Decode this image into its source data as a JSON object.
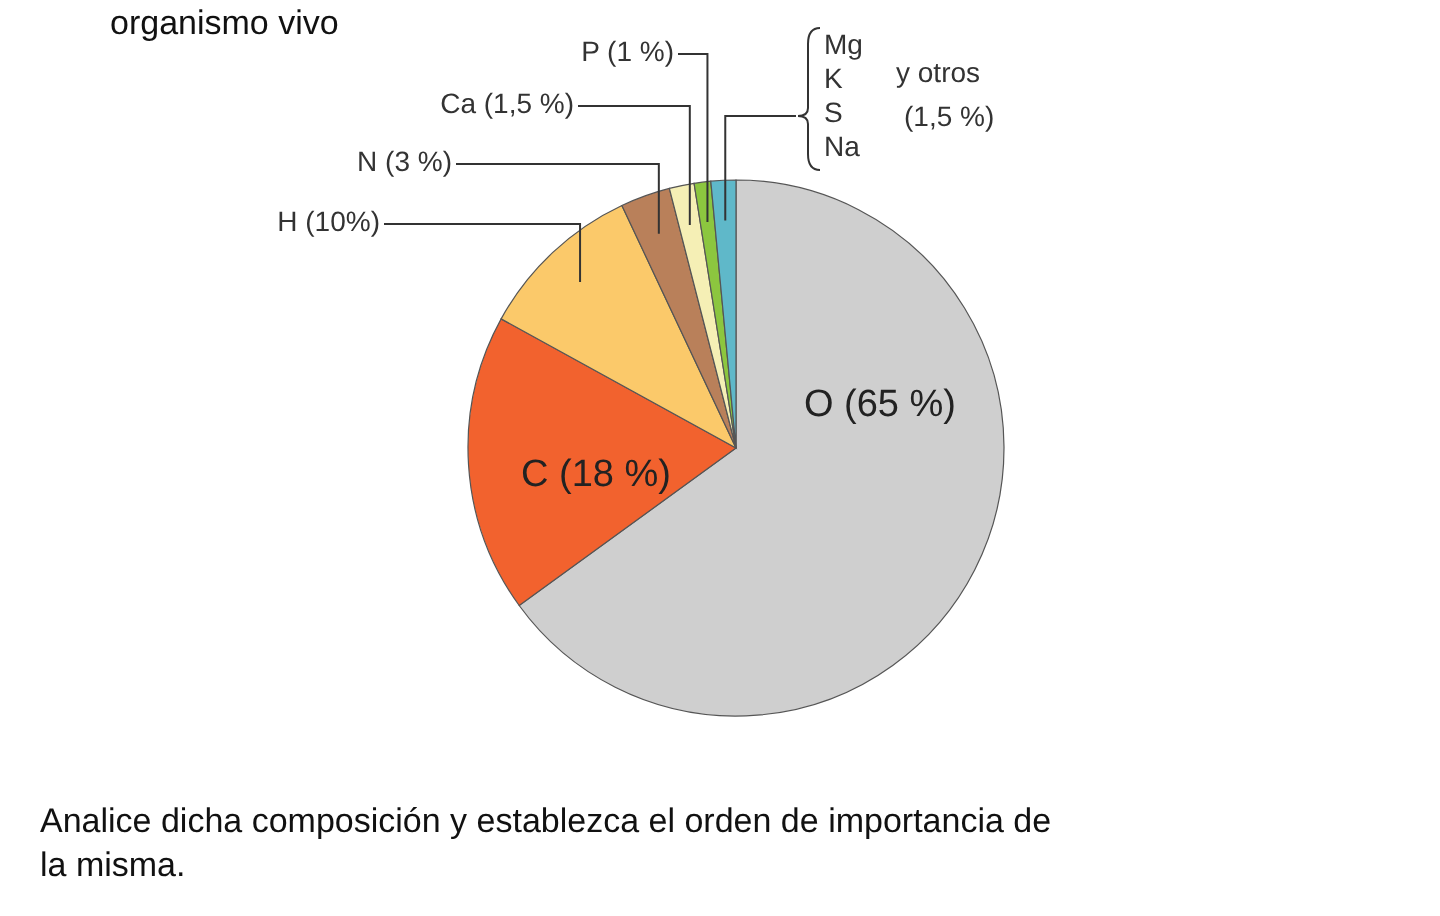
{
  "chart_data": {
    "type": "pie",
    "title": "organismo vivo",
    "categories": [
      "O (65 %)",
      "C (18 %)",
      "H (10%)",
      "N  (3 %)",
      "Ca (1,5 %)",
      "P (1 %)",
      "Mg K S Na y otros (1,5 %)"
    ],
    "values": [
      65,
      18,
      10,
      3,
      1.5,
      1,
      1.5
    ],
    "colors": [
      "#cfcfcf",
      "#f2622e",
      "#fbc96a",
      "#b9805a",
      "#f5efb5",
      "#8cc63f",
      "#5fb8c9"
    ],
    "annotations": [
      "Analice dicha composición y establezca el orden de importancia de la misma."
    ]
  }
}
